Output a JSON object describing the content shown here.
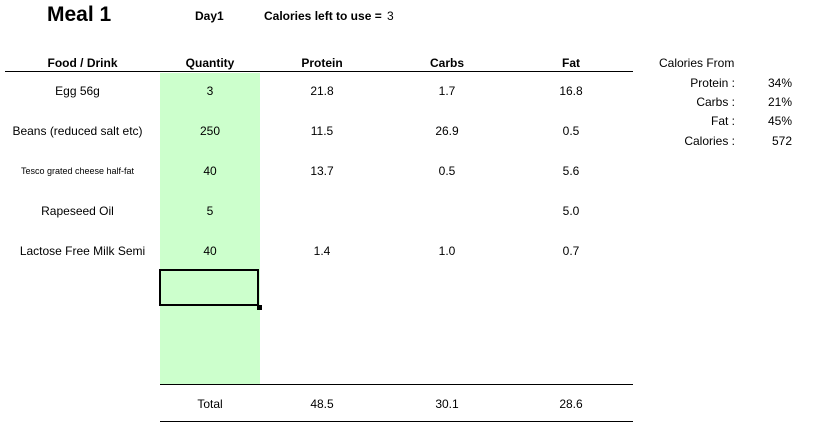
{
  "header": {
    "meal_title": "Meal 1",
    "day": "Day1",
    "calories_left_label": "Calories left to use =",
    "calories_left_value": "3"
  },
  "table": {
    "columns": [
      "Food / Drink",
      "Quantity",
      "Protein",
      "Carbs",
      "Fat"
    ],
    "rows": [
      {
        "food": "Egg 56g",
        "quantity": "3",
        "protein": "21.8",
        "carbs": "1.7",
        "fat": "16.8"
      },
      {
        "food": "Beans (reduced salt etc)",
        "quantity": "250",
        "protein": "11.5",
        "carbs": "26.9",
        "fat": "0.5"
      },
      {
        "food": "Tesco grated cheese half-fat",
        "quantity": "40",
        "protein": "13.7",
        "carbs": "0.5",
        "fat": "5.6"
      },
      {
        "food": "Rapeseed Oil",
        "quantity": "5",
        "protein": "",
        "carbs": "",
        "fat": "5.0"
      },
      {
        "food": "Lactose Free Milk Semi",
        "quantity": "40",
        "protein": "1.4",
        "carbs": "1.0",
        "fat": "0.7"
      }
    ],
    "total": {
      "label": "Total",
      "protein": "48.5",
      "carbs": "30.1",
      "fat": "28.6"
    }
  },
  "calories_from": {
    "title": "Calories From",
    "items": [
      {
        "label": "Protein :",
        "value": "34%"
      },
      {
        "label": "Carbs :",
        "value": "21%"
      },
      {
        "label": "Fat :",
        "value": "45%"
      },
      {
        "label": "Calories :",
        "value": "572"
      }
    ]
  },
  "colors": {
    "quantity_fill": "#ccffcc",
    "selection_border": "#000000"
  }
}
